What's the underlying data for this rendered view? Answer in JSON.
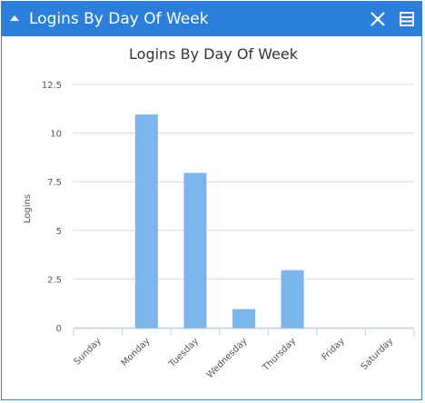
{
  "widget": {
    "title": "Logins By Day Of Week",
    "header_color": "#2b7fdb",
    "icons": {
      "collapse": "caret-up-icon",
      "close": "close-icon",
      "menu": "menu-lines-icon"
    }
  },
  "chart_data": {
    "type": "bar",
    "title": "Logins By Day Of Week",
    "xlabel": "",
    "ylabel": "Logins",
    "categories": [
      "Sunday",
      "Monday",
      "Tuesday",
      "Wednesday",
      "Thursday",
      "Friday",
      "Saturday"
    ],
    "values": [
      0,
      11,
      8,
      1,
      3,
      0,
      0
    ],
    "ylim": [
      0,
      12.5
    ],
    "yticks": [
      0,
      2.5,
      5,
      7.5,
      10,
      12.5
    ],
    "ytick_labels": [
      "0",
      "2.5",
      "5",
      "7.5",
      "10",
      "12.5"
    ],
    "grid": true,
    "legend": "none",
    "bar_color": "#7cb5ec"
  }
}
